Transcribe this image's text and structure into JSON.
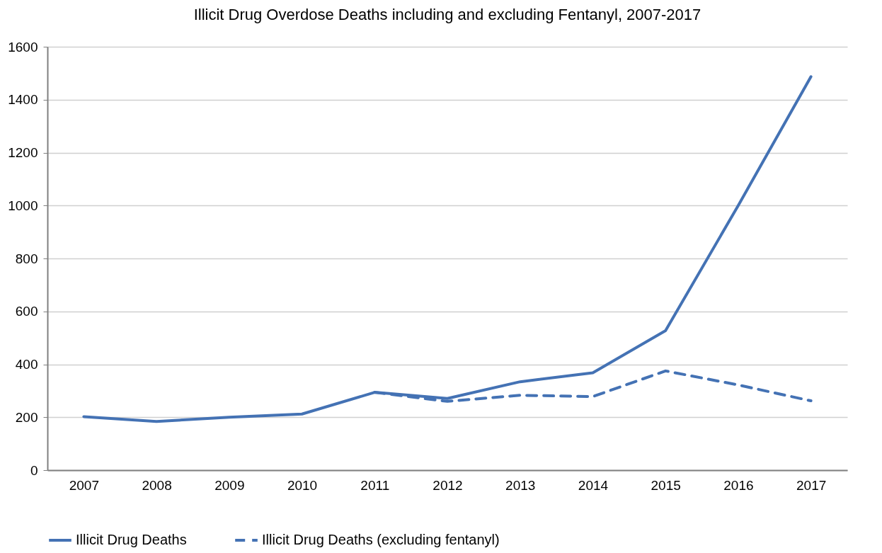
{
  "chart_data": {
    "type": "line",
    "title": "Illicit Drug Overdose Deaths including and excluding Fentanyl, 2007-2017",
    "categories": [
      "2007",
      "2008",
      "2009",
      "2010",
      "2011",
      "2012",
      "2013",
      "2014",
      "2015",
      "2016",
      "2017"
    ],
    "series": [
      {
        "name": "Illicit Drug Deaths",
        "color": "#4472b4",
        "line_style": "solid",
        "values": [
          202,
          184,
          200,
          212,
          294,
          271,
          334,
          368,
          527,
          1000,
          1487
        ]
      },
      {
        "name": "Illicit Drug Deaths (excluding fentanyl)",
        "color": "#4472b4",
        "line_style": "dashed",
        "values": [
          null,
          null,
          null,
          null,
          294,
          260,
          283,
          278,
          375,
          322,
          262
        ]
      }
    ],
    "ylim": [
      0,
      1600
    ],
    "yticks": [
      0,
      200,
      400,
      600,
      800,
      1000,
      1200,
      1400,
      1600
    ],
    "grid": "y",
    "legend": "bottom",
    "marker": "none"
  }
}
